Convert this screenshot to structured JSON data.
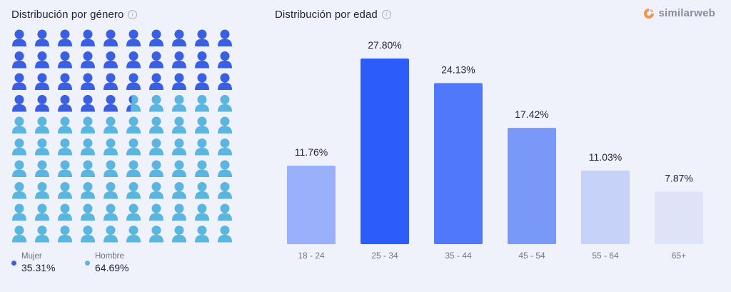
{
  "gender": {
    "title": "Distribución por género",
    "info_icon": "info-icon",
    "grid": {
      "rows": 10,
      "cols": 10,
      "female_share": 35.31
    },
    "legend": [
      {
        "label": "Mujer",
        "value": "35.31%",
        "color": "#3a5fe0"
      },
      {
        "label": "Hombre",
        "value": "64.69%",
        "color": "#5bb6df"
      }
    ]
  },
  "age": {
    "title": "Distribución por edad",
    "info_icon": "info-icon"
  },
  "brand": {
    "name": "similarweb",
    "icon": "similarweb-logo-icon",
    "colors": [
      "#f4944a",
      "#f1b48a"
    ]
  },
  "chart_data": [
    {
      "type": "bar",
      "title": "Distribución por edad",
      "categories": [
        "18 - 24",
        "25 - 34",
        "35 - 44",
        "45 - 54",
        "55 - 64",
        "65+"
      ],
      "values": [
        11.76,
        27.8,
        24.13,
        17.42,
        11.03,
        7.87
      ],
      "value_labels": [
        "11.76%",
        "27.80%",
        "24.13%",
        "17.42%",
        "11.03%",
        "7.87%"
      ],
      "colors": [
        "#9bb0fa",
        "#2c5dfb",
        "#4f78fb",
        "#7a98f8",
        "#c6d2f8",
        "#dfe3f8"
      ],
      "unit": "%",
      "ylim": [
        0,
        27.8
      ]
    },
    {
      "type": "pictograph",
      "title": "Distribución por género",
      "categories": [
        "Mujer",
        "Hombre"
      ],
      "values": [
        35.31,
        64.69
      ],
      "unit": "%"
    }
  ]
}
